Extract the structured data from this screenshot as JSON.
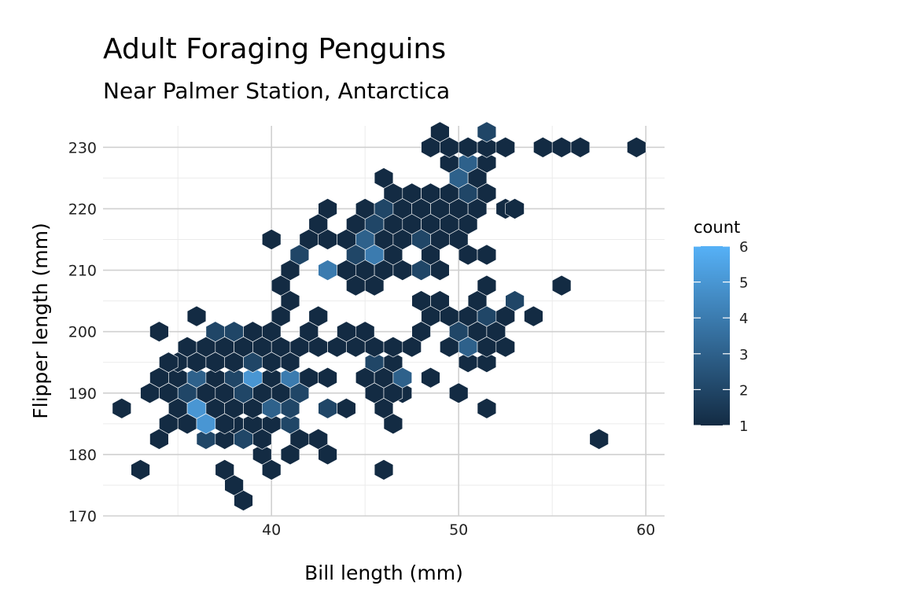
{
  "chart_data": {
    "type": "hexbin",
    "title": "Adult Foraging Penguins",
    "subtitle": "Near Palmer Station, Antarctica",
    "xlabel": "Bill length (mm)",
    "ylabel": "Flipper length (mm)",
    "xlim": [
      31,
      61
    ],
    "ylim": [
      170,
      233.5
    ],
    "x_ticks": [
      40,
      50,
      60
    ],
    "y_ticks": [
      170,
      180,
      190,
      200,
      210,
      220,
      230
    ],
    "grid": true,
    "legend": {
      "title": "count",
      "position": "right",
      "ticks": [
        1,
        2,
        3,
        4,
        5,
        6
      ],
      "range": [
        1,
        6
      ],
      "color_low": "#132B43",
      "color_high": "#56B1F7"
    },
    "hex_size": {
      "x_spacing": 1.0,
      "y_spacing": 2.5
    },
    "cells": [
      [
        38.5,
        172.5,
        1
      ],
      [
        38.0,
        175.0,
        1
      ],
      [
        40.0,
        177.5,
        1
      ],
      [
        33.0,
        177.5,
        1
      ],
      [
        37.5,
        177.5,
        1
      ],
      [
        46.0,
        177.5,
        1
      ],
      [
        39.5,
        180.0,
        1
      ],
      [
        41.0,
        180.0,
        1
      ],
      [
        43.0,
        180.0,
        1
      ],
      [
        36.5,
        182.5,
        2
      ],
      [
        37.5,
        182.5,
        1
      ],
      [
        38.5,
        182.5,
        2
      ],
      [
        39.5,
        182.5,
        1
      ],
      [
        41.5,
        182.5,
        1
      ],
      [
        42.5,
        182.5,
        1
      ],
      [
        57.5,
        182.5,
        1
      ],
      [
        34.0,
        182.5,
        1
      ],
      [
        38.0,
        185.0,
        1
      ],
      [
        39.0,
        185.0,
        1
      ],
      [
        40.0,
        185.0,
        1
      ],
      [
        41.0,
        185.0,
        2
      ],
      [
        34.5,
        185.0,
        1
      ],
      [
        35.5,
        185.0,
        1
      ],
      [
        36.5,
        185.0,
        5
      ],
      [
        37.5,
        185.0,
        1
      ],
      [
        46.5,
        185.0,
        1
      ],
      [
        35.0,
        187.5,
        1
      ],
      [
        36.0,
        187.5,
        5
      ],
      [
        37.0,
        187.5,
        1
      ],
      [
        38.0,
        187.5,
        1
      ],
      [
        39.0,
        187.5,
        1
      ],
      [
        40.0,
        187.5,
        3
      ],
      [
        41.0,
        187.5,
        2
      ],
      [
        43.0,
        187.5,
        2
      ],
      [
        44.0,
        187.5,
        1
      ],
      [
        46.0,
        187.5,
        1
      ],
      [
        51.5,
        187.5,
        1
      ],
      [
        32.0,
        187.5,
        1
      ],
      [
        36.5,
        190.0,
        1
      ],
      [
        37.5,
        190.0,
        1
      ],
      [
        38.5,
        190.0,
        2
      ],
      [
        39.5,
        190.0,
        1
      ],
      [
        40.5,
        190.0,
        1
      ],
      [
        41.5,
        190.0,
        2
      ],
      [
        45.5,
        190.0,
        1
      ],
      [
        47.0,
        190.0,
        1
      ],
      [
        33.5,
        190.0,
        1
      ],
      [
        34.5,
        190.0,
        1
      ],
      [
        35.5,
        190.0,
        2
      ],
      [
        46.5,
        190.0,
        1
      ],
      [
        50.0,
        190.0,
        1
      ],
      [
        35.0,
        192.5,
        1
      ],
      [
        36.0,
        192.5,
        3
      ],
      [
        37.0,
        192.5,
        1
      ],
      [
        38.0,
        192.5,
        2
      ],
      [
        39.0,
        192.5,
        5
      ],
      [
        40.0,
        192.5,
        1
      ],
      [
        41.0,
        192.5,
        4
      ],
      [
        42.0,
        192.5,
        1
      ],
      [
        43.0,
        192.5,
        1
      ],
      [
        45.0,
        192.5,
        1
      ],
      [
        46.0,
        192.5,
        1
      ],
      [
        47.0,
        192.5,
        3
      ],
      [
        48.5,
        192.5,
        1
      ],
      [
        34.0,
        192.5,
        1
      ],
      [
        35.0,
        195.0,
        1
      ],
      [
        36.0,
        195.0,
        1
      ],
      [
        37.0,
        195.0,
        1
      ],
      [
        38.0,
        195.0,
        1
      ],
      [
        39.0,
        195.0,
        2
      ],
      [
        40.0,
        195.0,
        1
      ],
      [
        41.0,
        195.0,
        1
      ],
      [
        45.5,
        195.0,
        2
      ],
      [
        46.5,
        195.0,
        1
      ],
      [
        50.5,
        195.0,
        1
      ],
      [
        51.5,
        195.0,
        1
      ],
      [
        34.5,
        195.0,
        1
      ],
      [
        35.5,
        197.5,
        1
      ],
      [
        36.5,
        197.5,
        1
      ],
      [
        37.5,
        197.5,
        1
      ],
      [
        38.5,
        197.5,
        1
      ],
      [
        39.5,
        197.5,
        1
      ],
      [
        40.5,
        197.5,
        1
      ],
      [
        41.5,
        197.5,
        1
      ],
      [
        42.5,
        197.5,
        1
      ],
      [
        43.5,
        197.5,
        1
      ],
      [
        44.5,
        197.5,
        1
      ],
      [
        45.5,
        197.5,
        1
      ],
      [
        46.5,
        197.5,
        1
      ],
      [
        47.5,
        197.5,
        1
      ],
      [
        49.5,
        197.5,
        1
      ],
      [
        50.5,
        197.5,
        3
      ],
      [
        51.5,
        197.5,
        1
      ],
      [
        52.5,
        197.5,
        1
      ],
      [
        37.0,
        200.0,
        2
      ],
      [
        38.0,
        200.0,
        2
      ],
      [
        39.0,
        200.0,
        1
      ],
      [
        40.0,
        200.0,
        1
      ],
      [
        42.0,
        200.0,
        1
      ],
      [
        44.0,
        200.0,
        1
      ],
      [
        45.0,
        200.0,
        1
      ],
      [
        48.0,
        200.0,
        1
      ],
      [
        50.0,
        200.0,
        2
      ],
      [
        51.0,
        200.0,
        1
      ],
      [
        52.0,
        200.0,
        1
      ],
      [
        34.0,
        200.0,
        1
      ],
      [
        40.5,
        202.5,
        1
      ],
      [
        42.5,
        202.5,
        1
      ],
      [
        48.5,
        202.5,
        1
      ],
      [
        49.5,
        202.5,
        1
      ],
      [
        50.5,
        202.5,
        1
      ],
      [
        51.5,
        202.5,
        2
      ],
      [
        52.5,
        202.5,
        1
      ],
      [
        54.0,
        202.5,
        1
      ],
      [
        36.0,
        202.5,
        1
      ],
      [
        41.0,
        205.0,
        1
      ],
      [
        48.0,
        205.0,
        1
      ],
      [
        49.0,
        205.0,
        1
      ],
      [
        51.0,
        205.0,
        1
      ],
      [
        53.0,
        205.0,
        2
      ],
      [
        40.5,
        207.5,
        1
      ],
      [
        44.5,
        207.5,
        1
      ],
      [
        45.5,
        207.5,
        1
      ],
      [
        51.5,
        207.5,
        1
      ],
      [
        55.5,
        207.5,
        1
      ],
      [
        41.0,
        210.0,
        1
      ],
      [
        43.0,
        210.0,
        4
      ],
      [
        44.0,
        210.0,
        1
      ],
      [
        45.0,
        210.0,
        1
      ],
      [
        46.0,
        210.0,
        1
      ],
      [
        47.0,
        210.0,
        1
      ],
      [
        48.0,
        210.0,
        2
      ],
      [
        49.0,
        210.0,
        1
      ],
      [
        41.5,
        212.5,
        2
      ],
      [
        44.5,
        212.5,
        2
      ],
      [
        45.5,
        212.5,
        4
      ],
      [
        46.5,
        212.5,
        1
      ],
      [
        48.5,
        212.5,
        1
      ],
      [
        50.5,
        212.5,
        1
      ],
      [
        51.5,
        212.5,
        1
      ],
      [
        40.0,
        215.0,
        1
      ],
      [
        42.0,
        215.0,
        1
      ],
      [
        43.0,
        215.0,
        1
      ],
      [
        44.0,
        215.0,
        1
      ],
      [
        45.0,
        215.0,
        3
      ],
      [
        46.0,
        215.0,
        1
      ],
      [
        47.0,
        215.0,
        1
      ],
      [
        48.0,
        215.0,
        2
      ],
      [
        49.0,
        215.0,
        1
      ],
      [
        50.0,
        215.0,
        1
      ],
      [
        42.5,
        217.5,
        1
      ],
      [
        44.5,
        217.5,
        1
      ],
      [
        45.5,
        217.5,
        2
      ],
      [
        46.5,
        217.5,
        1
      ],
      [
        47.5,
        217.5,
        1
      ],
      [
        48.5,
        217.5,
        1
      ],
      [
        49.5,
        217.5,
        1
      ],
      [
        50.5,
        217.5,
        1
      ],
      [
        43.0,
        220.0,
        1
      ],
      [
        45.0,
        220.0,
        1
      ],
      [
        46.0,
        220.0,
        2
      ],
      [
        47.0,
        220.0,
        1
      ],
      [
        48.0,
        220.0,
        1
      ],
      [
        49.0,
        220.0,
        1
      ],
      [
        50.0,
        220.0,
        1
      ],
      [
        51.0,
        220.0,
        1
      ],
      [
        52.5,
        220.0,
        1
      ],
      [
        53.0,
        220.0,
        1
      ],
      [
        46.5,
        222.5,
        1
      ],
      [
        47.5,
        222.5,
        1
      ],
      [
        48.5,
        222.5,
        1
      ],
      [
        49.5,
        222.5,
        1
      ],
      [
        50.5,
        222.5,
        2
      ],
      [
        51.5,
        222.5,
        1
      ],
      [
        46.0,
        225.0,
        1
      ],
      [
        50.0,
        225.0,
        3
      ],
      [
        51.0,
        225.0,
        1
      ],
      [
        49.5,
        227.5,
        1
      ],
      [
        50.5,
        227.5,
        3
      ],
      [
        51.5,
        227.5,
        1
      ],
      [
        48.5,
        230.0,
        1
      ],
      [
        49.5,
        230.0,
        1
      ],
      [
        50.5,
        230.0,
        1
      ],
      [
        51.5,
        230.0,
        1
      ],
      [
        52.5,
        230.0,
        1
      ],
      [
        54.5,
        230.0,
        1
      ],
      [
        55.5,
        230.0,
        1
      ],
      [
        56.5,
        230.0,
        1
      ],
      [
        59.5,
        230.0,
        1
      ],
      [
        49.0,
        232.5,
        1
      ],
      [
        51.5,
        232.5,
        2
      ]
    ]
  }
}
